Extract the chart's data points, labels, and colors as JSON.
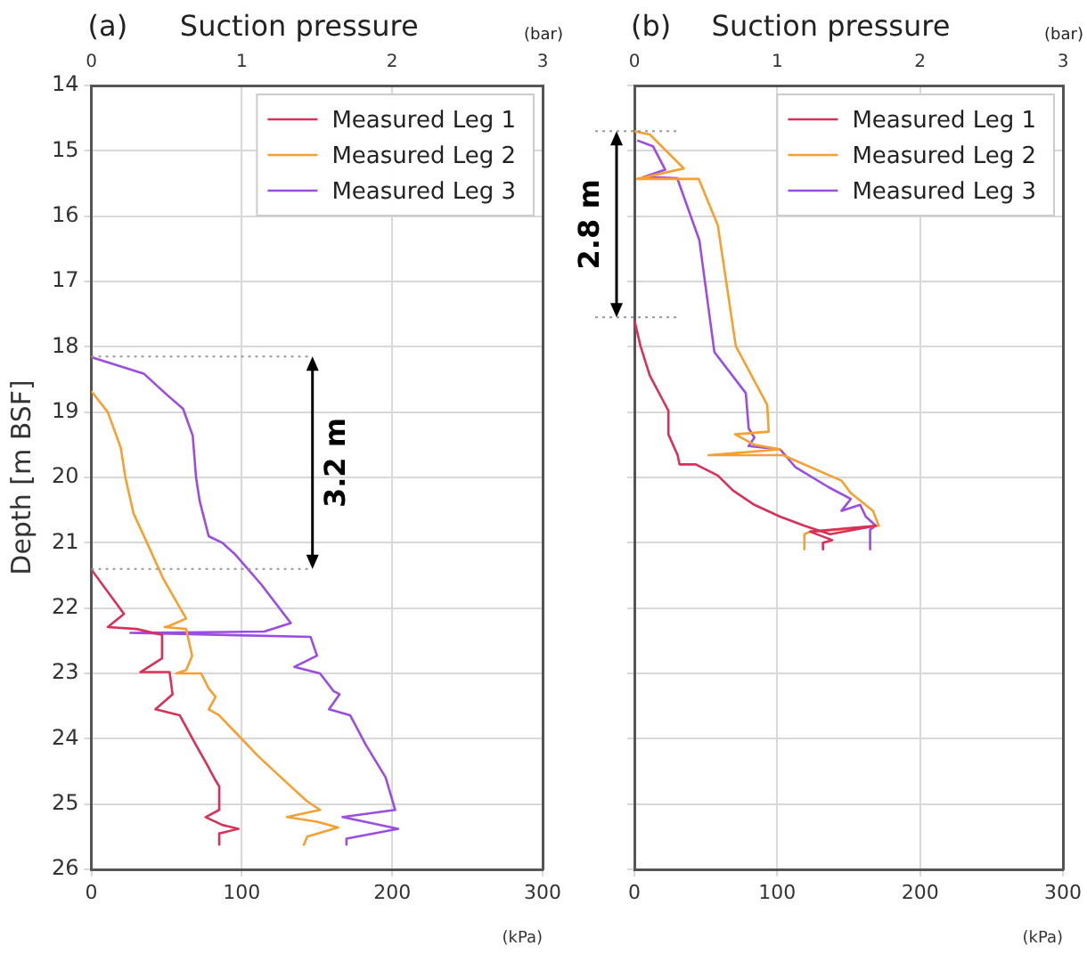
{
  "chart_data": [
    {
      "type": "line",
      "title": "(a)",
      "x2label": "Suction pressure",
      "xlabel": "(kPa)",
      "ylabel": "Depth [m BSF]",
      "xlim": [
        0,
        300
      ],
      "xticks": [
        0,
        100,
        200,
        300
      ],
      "x2lim": [
        0,
        3
      ],
      "x2ticks": [
        0,
        1,
        2,
        3
      ],
      "ylim": [
        26,
        14
      ],
      "yticks": [
        14,
        15,
        16,
        17,
        18,
        19,
        20,
        21,
        22,
        23,
        24,
        25,
        26
      ],
      "grid": true,
      "legend": "top right",
      "line_style": "solid",
      "marker": "none",
      "series": [
        {
          "name": "Measured Leg 1",
          "color": "#d9305a",
          "x": [
            0,
            21.7,
            10.9,
            30,
            47,
            47,
            32.6,
            52,
            54,
            42.6,
            58.7,
            69.6,
            76,
            82.6,
            85,
            85,
            76,
            87,
            97.8,
            85,
            85
          ],
          "values": [
            21.41,
            22.09,
            22.29,
            22.32,
            22.41,
            22.77,
            22.98,
            22.98,
            23.32,
            23.55,
            23.64,
            24.1,
            24.36,
            24.64,
            24.73,
            25.09,
            25.2,
            25.32,
            25.38,
            25.45,
            25.62
          ]
        },
        {
          "name": "Measured Leg 2",
          "color": "#f5a030",
          "x": [
            0,
            10.9,
            19.6,
            22.6,
            28,
            37,
            47.8,
            56.5,
            63,
            52,
            48.7,
            63,
            67,
            63,
            56.5,
            73,
            78,
            82.6,
            78,
            84.8,
            95.7,
            111,
            126,
            143,
            152,
            130,
            150,
            164,
            143.5,
            141
          ],
          "values": [
            18.68,
            19.0,
            19.55,
            20.0,
            20.55,
            21.0,
            21.55,
            21.9,
            22.16,
            22.27,
            22.29,
            22.32,
            22.73,
            22.95,
            23.0,
            23.0,
            23.23,
            23.36,
            23.55,
            23.64,
            23.9,
            24.27,
            24.59,
            24.95,
            25.09,
            25.2,
            25.27,
            25.36,
            25.5,
            25.64
          ]
        },
        {
          "name": "Measured Leg 3",
          "color": "#9a4de0",
          "x": [
            0,
            34.8,
            50,
            61,
            67.4,
            69.6,
            72,
            78,
            87,
            95.7,
            113,
            132.6,
            115,
            26,
            145.7,
            150,
            135,
            152,
            161,
            165,
            158,
            172,
            182.6,
            195.6,
            202,
            167,
            204,
            169.6,
            169.6
          ],
          "values": [
            18.16,
            18.41,
            18.73,
            18.95,
            19.36,
            20.0,
            20.36,
            20.9,
            21.0,
            21.18,
            21.64,
            22.23,
            22.36,
            22.38,
            22.44,
            22.73,
            22.9,
            23.0,
            23.27,
            23.32,
            23.55,
            23.64,
            24.1,
            24.59,
            25.09,
            25.2,
            25.38,
            25.53,
            25.62
          ]
        }
      ],
      "ref_lines": [
        {
          "axis": "y",
          "value": 18.15,
          "color": "#999999",
          "line_style": "dotted"
        },
        {
          "axis": "y",
          "value": 21.4,
          "color": "#999999",
          "line_style": "dotted"
        }
      ],
      "annotations": [
        "(bar)",
        "3.2 m"
      ]
    },
    {
      "type": "line",
      "title": "(b)",
      "x2label": "Suction pressure",
      "xlabel": "(kPa)",
      "xlim": [
        0,
        300
      ],
      "xticks": [
        0,
        100,
        200,
        300
      ],
      "x2lim": [
        0,
        3
      ],
      "x2ticks": [
        0,
        1,
        2,
        3
      ],
      "ylim": [
        26,
        14
      ],
      "yticks": [
        14,
        15,
        16,
        17,
        18,
        19,
        20,
        21,
        22,
        23,
        24,
        25,
        26
      ],
      "tick_labels": "x",
      "grid": true,
      "legend": "top right",
      "line_style": "solid",
      "marker": "none",
      "series": [
        {
          "name": "Measured Leg 1",
          "color": "#d9305a",
          "x": [
            0,
            4.3,
            10.8,
            19.5,
            23.8,
            23.8,
            30.3,
            31.6,
            43,
            58.4,
            69,
            84,
            102,
            119,
            137,
            169,
            123,
            138.5,
            132,
            132
          ],
          "values": [
            17.59,
            17.99,
            18.44,
            18.8,
            18.98,
            19.34,
            19.66,
            19.8,
            19.8,
            19.97,
            20.2,
            20.42,
            20.6,
            20.74,
            20.87,
            20.74,
            20.83,
            20.96,
            21.0,
            21.1
          ]
        },
        {
          "name": "Measured Leg 2",
          "color": "#f5a030",
          "x": [
            0,
            10.8,
            34.6,
            2,
            45,
            58.4,
            71,
            93,
            94,
            70.5,
            84,
            102,
            52,
            104,
            145,
            151.5,
            167,
            171,
            156,
            123,
            119,
            119
          ],
          "values": [
            14.7,
            14.75,
            15.27,
            15.43,
            15.43,
            16.14,
            17.99,
            18.89,
            19.3,
            19.34,
            19.5,
            19.57,
            19.66,
            19.66,
            20.05,
            20.24,
            20.51,
            20.74,
            20.78,
            20.83,
            20.87,
            21.1
          ]
        },
        {
          "name": "Measured Leg 3",
          "color": "#9a4de0",
          "x": [
            2,
            13,
            21.6,
            6.5,
            30,
            45.5,
            56,
            78,
            80,
            84,
            80,
            102,
            112.6,
            136,
            151.5,
            145,
            158,
            162,
            169,
            165,
            165
          ],
          "values": [
            14.84,
            14.93,
            15.29,
            15.4,
            15.42,
            16.37,
            18.08,
            18.71,
            19.25,
            19.39,
            19.52,
            19.57,
            19.84,
            20.15,
            20.33,
            20.51,
            20.42,
            20.6,
            20.74,
            20.8,
            21.1
          ]
        }
      ],
      "ref_lines": [
        {
          "axis": "y",
          "value": 14.7,
          "color": "#999999",
          "line_style": "dotted"
        },
        {
          "axis": "y",
          "value": 17.55,
          "color": "#999999",
          "line_style": "dotted"
        }
      ],
      "annotations": [
        "(bar)",
        "2.8 m"
      ]
    }
  ]
}
